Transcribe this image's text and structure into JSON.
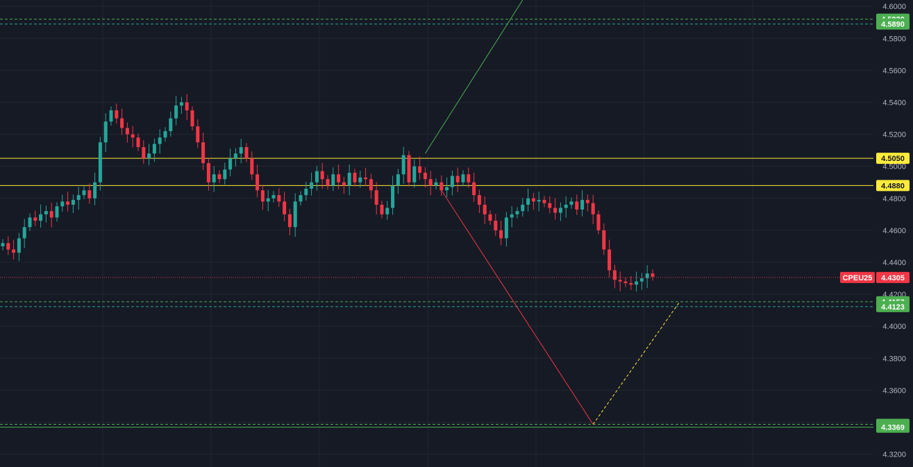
{
  "chart_data": {
    "type": "candlestick",
    "symbol": "CPEU25",
    "last_price": 4.4305,
    "y_axis": {
      "min": 4.312,
      "max": 4.604,
      "ticks": [
        "4.3200",
        "4.3400",
        "4.3600",
        "4.3800",
        "4.4000",
        "4.4200",
        "4.4400",
        "4.4600",
        "4.4800",
        "4.5000",
        "4.5200",
        "4.5400",
        "4.5600",
        "4.5800",
        "4.6000"
      ]
    },
    "horizontal_levels": [
      {
        "label": "4.5920",
        "value": 4.592,
        "style": "dashed",
        "color": "#4caf50"
      },
      {
        "label": "4.5890",
        "value": 4.589,
        "style": "dashed",
        "color": "#26a69a"
      },
      {
        "label": "4.5050",
        "value": 4.505,
        "style": "solid",
        "color": "#ffeb3b"
      },
      {
        "label": "4.4880",
        "value": 4.488,
        "style": "solid",
        "color": "#ffeb3b"
      },
      {
        "label": "4.4153",
        "value": 4.4153,
        "style": "dashed",
        "color": "#4caf50"
      },
      {
        "label": "4.4123",
        "value": 4.4123,
        "style": "dashed",
        "color": "#26a69a"
      },
      {
        "label": "4.3387",
        "value": 4.3387,
        "style": "dashed",
        "color": "#4caf50"
      },
      {
        "label": "4.3369",
        "value": 4.3369,
        "style": "solid",
        "color": "#4caf50"
      }
    ],
    "trend_lines": [
      {
        "color": "#4caf50",
        "style": "solid",
        "from": {
          "bar": 78,
          "price": 4.508
        },
        "to": {
          "bar": 96,
          "price": 4.604
        }
      },
      {
        "color": "#f23645",
        "style": "solid",
        "from": {
          "bar": 81,
          "price": 4.485
        },
        "to": {
          "bar": 109,
          "price": 4.3387
        }
      },
      {
        "color": "#ffeb3b",
        "style": "dashed",
        "from": {
          "bar": 109,
          "price": 4.3387
        },
        "to": {
          "bar": 125,
          "price": 4.4153
        }
      }
    ],
    "close_series": [
      4.452,
      4.448,
      4.446,
      4.455,
      4.462,
      4.468,
      4.466,
      4.47,
      4.472,
      4.468,
      4.475,
      4.478,
      4.476,
      4.479,
      4.482,
      4.485,
      4.48,
      4.49,
      4.515,
      4.528,
      4.535,
      4.53,
      4.524,
      4.52,
      4.518,
      4.512,
      4.505,
      4.508,
      4.514,
      4.518,
      4.522,
      4.53,
      4.538,
      4.54,
      4.535,
      4.525,
      4.515,
      4.502,
      4.49,
      4.495,
      4.492,
      4.498,
      4.505,
      4.508,
      4.512,
      4.505,
      4.495,
      4.485,
      4.478,
      4.48,
      4.482,
      4.478,
      4.47,
      4.462,
      4.478,
      4.482,
      4.486,
      4.49,
      4.497,
      4.492,
      4.488,
      4.495,
      4.49,
      4.488,
      4.496,
      4.49,
      4.493,
      4.492,
      4.485,
      4.476,
      4.47,
      4.474,
      4.488,
      4.495,
      4.507,
      4.49,
      4.5,
      4.496,
      4.492,
      4.488,
      4.49,
      4.485,
      4.487,
      4.494,
      4.49,
      4.495,
      4.49,
      4.482,
      4.476,
      4.47,
      4.466,
      4.46,
      4.455,
      4.468,
      4.47,
      4.472,
      4.476,
      4.48,
      4.478,
      4.479,
      4.477,
      4.474,
      4.471,
      4.474,
      4.476,
      4.478,
      4.473,
      4.479,
      4.477,
      4.47,
      4.46,
      4.448,
      4.435,
      4.429,
      4.428,
      4.427,
      4.426,
      4.428,
      4.43,
      4.433,
      4.431
    ],
    "grid": true
  }
}
